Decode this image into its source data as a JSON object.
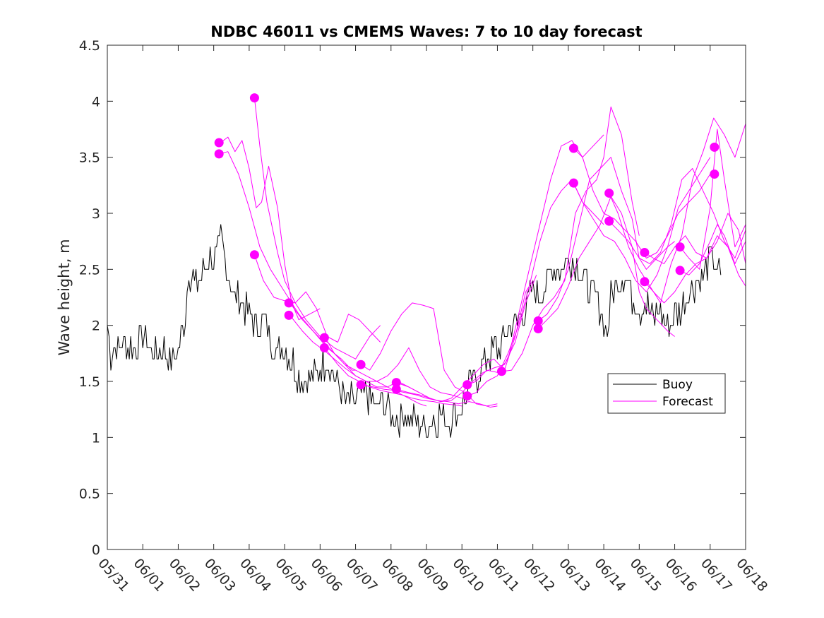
{
  "chart_data": {
    "type": "line",
    "title": "NDBC 46011 vs CMEMS Waves: 7 to 10 day forecast",
    "ylabel": "Wave height, m",
    "xlabel": "",
    "ylim": [
      0,
      4.5
    ],
    "yticks": [
      0,
      0.5,
      1,
      1.5,
      2,
      2.5,
      3,
      3.5,
      4,
      4.5
    ],
    "ytick_labels": [
      "0",
      "0.5",
      "1",
      "1.5",
      "2",
      "2.5",
      "3",
      "3.5",
      "4",
      "4.5"
    ],
    "xlim": [
      "05/31",
      "06/18"
    ],
    "xtick_labels": [
      "05/31",
      "06/01",
      "06/02",
      "06/03",
      "06/04",
      "06/05",
      "06/06",
      "06/07",
      "06/08",
      "06/09",
      "06/10",
      "06/11",
      "06/12",
      "06/13",
      "06/14",
      "06/15",
      "06/16",
      "06/17",
      "06/18"
    ],
    "grid": false,
    "legend": {
      "placement": "right",
      "entries": [
        {
          "label": "Buoy",
          "color": "#000000"
        },
        {
          "label": "Forecast",
          "color": "#ff00ff"
        }
      ]
    },
    "series": [
      {
        "name": "Buoy",
        "color": "#000000",
        "x": [
          0,
          0.1,
          0.3,
          0.5,
          0.7,
          0.9,
          1.0,
          1.2,
          1.4,
          1.6,
          1.8,
          1.9,
          2.0,
          2.2,
          2.3,
          2.5,
          2.7,
          2.9,
          3.0,
          3.2,
          3.4,
          3.6,
          3.8,
          4.0,
          4.2,
          4.4,
          4.6,
          4.8,
          5.0,
          5.2,
          5.4,
          5.6,
          5.8,
          6.0,
          6.2,
          6.4,
          6.6,
          6.8,
          7.0,
          7.2,
          7.4,
          7.6,
          7.8,
          8.0,
          8.2,
          8.4,
          8.6,
          8.8,
          9.0,
          9.2,
          9.4,
          9.6,
          9.8,
          10.0,
          10.2,
          10.4,
          10.6,
          10.8,
          11.0,
          11.2,
          11.4,
          11.6,
          11.8,
          12.0,
          12.2,
          12.4,
          12.6,
          12.8,
          13.0,
          13.2,
          13.4,
          13.6,
          13.8,
          14.0,
          14.1,
          14.2,
          14.4,
          14.6,
          14.8,
          15.0,
          15.2,
          15.4,
          15.6,
          15.8,
          16.0,
          16.2,
          16.4,
          16.6,
          16.8,
          17.0,
          17.1,
          17.2,
          17.3
        ],
        "values": [
          2.05,
          1.75,
          1.8,
          1.85,
          1.8,
          1.85,
          1.95,
          1.8,
          1.75,
          1.8,
          1.7,
          1.75,
          1.75,
          2.1,
          2.5,
          2.35,
          2.45,
          2.65,
          2.55,
          2.75,
          2.45,
          2.25,
          2.2,
          2.1,
          2.0,
          2.05,
          1.9,
          1.75,
          1.8,
          1.7,
          1.55,
          1.5,
          1.55,
          1.6,
          1.7,
          1.55,
          1.4,
          1.3,
          1.35,
          1.4,
          1.35,
          1.25,
          1.3,
          1.2,
          1.15,
          1.2,
          1.15,
          1.1,
          1.1,
          1.15,
          1.2,
          1.15,
          1.2,
          1.25,
          1.45,
          1.55,
          1.65,
          1.75,
          1.8,
          1.9,
          2.0,
          2.05,
          2.15,
          2.3,
          2.25,
          2.4,
          2.55,
          2.5,
          2.6,
          2.55,
          2.45,
          2.3,
          2.25,
          2.05,
          1.9,
          2.3,
          2.4,
          2.5,
          2.25,
          2.15,
          2.2,
          2.05,
          2.15,
          2.0,
          2.1,
          2.15,
          2.3,
          2.4,
          2.45,
          2.6,
          2.55,
          2.5,
          2.45
        ]
      },
      {
        "name": "Forecast",
        "color": "#ff00ff",
        "x": [
          3.15,
          3.4,
          3.6,
          3.8,
          4.0,
          4.2,
          4.35,
          4.55,
          4.8,
          5.0,
          5.2,
          5.4,
          5.7,
          6.0
        ],
        "values": [
          3.62,
          3.68,
          3.55,
          3.65,
          3.4,
          3.05,
          3.1,
          3.42,
          3.05,
          2.55,
          2.2,
          2.05,
          2.1,
          2.15
        ]
      },
      {
        "name": "Forecast",
        "color": "#ff00ff",
        "x": [
          3.15,
          3.4,
          3.7,
          4.0,
          4.3,
          4.6,
          5.0,
          5.4,
          5.8,
          6.2,
          6.6,
          6.9,
          7.0
        ],
        "values": [
          3.53,
          3.55,
          3.35,
          3.05,
          2.7,
          2.5,
          2.3,
          2.1,
          1.95,
          1.8,
          1.7,
          1.6,
          1.6
        ]
      },
      {
        "name": "Forecast",
        "color": "#ff00ff",
        "x": [
          4.15,
          4.3,
          4.5,
          4.8,
          5.0,
          5.3,
          5.6,
          6.0,
          6.4,
          6.7,
          7.0,
          7.4,
          7.7
        ],
        "values": [
          4.03,
          3.6,
          3.1,
          2.65,
          2.4,
          2.2,
          2.05,
          1.9,
          1.8,
          1.75,
          1.7,
          1.9,
          2.0
        ]
      },
      {
        "name": "Forecast",
        "color": "#ff00ff",
        "x": [
          4.15,
          4.4,
          4.7,
          5.0,
          5.3,
          5.6,
          5.9,
          6.2,
          6.5,
          6.8,
          7.1,
          7.4,
          7.7
        ],
        "values": [
          2.63,
          2.4,
          2.25,
          2.22,
          2.2,
          2.3,
          2.15,
          1.9,
          1.85,
          2.1,
          2.05,
          1.95,
          1.85
        ]
      },
      {
        "name": "Forecast",
        "color": "#ff00ff",
        "x": [
          5.15,
          5.5,
          5.8,
          6.1,
          6.4,
          6.7,
          7.0,
          7.3,
          7.6,
          7.9,
          8.2,
          8.5,
          8.8,
          9.0
        ],
        "values": [
          2.2,
          2.05,
          1.95,
          1.85,
          1.75,
          1.65,
          1.6,
          1.55,
          1.5,
          1.45,
          1.4,
          1.35,
          1.3,
          1.28
        ]
      },
      {
        "name": "Forecast",
        "color": "#ff00ff",
        "x": [
          5.15,
          5.5,
          5.8,
          6.1,
          6.4,
          6.7,
          7.0,
          7.3,
          7.6,
          7.9,
          8.2,
          8.5,
          8.8
        ],
        "values": [
          2.09,
          1.95,
          1.85,
          1.78,
          1.7,
          1.62,
          1.55,
          1.5,
          1.45,
          1.45,
          1.5,
          1.45,
          1.4
        ]
      },
      {
        "name": "Forecast",
        "color": "#ff00ff",
        "x": [
          6.15,
          6.4,
          6.7,
          7.0,
          7.3,
          7.6,
          7.9,
          8.2,
          8.5,
          8.8,
          9.1,
          9.4,
          9.7,
          10.0
        ],
        "values": [
          1.89,
          1.75,
          1.65,
          1.55,
          1.5,
          1.5,
          1.55,
          1.65,
          1.8,
          1.6,
          1.45,
          1.4,
          1.38,
          1.35
        ]
      },
      {
        "name": "Forecast",
        "color": "#ff00ff",
        "x": [
          6.15,
          6.5,
          6.8,
          7.1,
          7.4,
          7.7,
          8.0,
          8.3,
          8.6,
          8.9,
          9.2,
          9.5,
          9.8,
          10.0
        ],
        "values": [
          1.79,
          1.65,
          1.55,
          1.5,
          1.45,
          1.42,
          1.4,
          1.38,
          1.35,
          1.33,
          1.32,
          1.3,
          1.29,
          1.28
        ]
      },
      {
        "name": "Forecast",
        "color": "#ff00ff",
        "x": [
          7.15,
          7.4,
          7.7,
          8.0,
          8.3,
          8.6,
          8.9,
          9.2,
          9.5,
          9.8,
          10.1,
          10.4,
          10.7,
          11.0
        ],
        "values": [
          1.65,
          1.6,
          1.75,
          1.95,
          2.1,
          2.2,
          2.18,
          2.15,
          1.6,
          1.45,
          1.4,
          1.3,
          1.28,
          1.3
        ]
      },
      {
        "name": "Forecast",
        "color": "#ff00ff",
        "x": [
          7.15,
          7.5,
          7.8,
          8.1,
          8.4,
          8.7,
          9.0,
          9.3,
          9.6,
          9.9,
          10.2,
          10.5,
          10.8,
          11.0
        ],
        "values": [
          1.47,
          1.45,
          1.43,
          1.42,
          1.4,
          1.38,
          1.35,
          1.33,
          1.32,
          1.3,
          1.32,
          1.3,
          1.27,
          1.28
        ]
      },
      {
        "name": "Forecast",
        "color": "#ff00ff",
        "x": [
          8.15,
          8.5,
          8.8,
          9.1,
          9.4,
          9.7,
          10.0,
          10.3,
          10.6,
          10.9,
          11.2,
          11.5,
          11.8,
          12.0
        ],
        "values": [
          1.49,
          1.45,
          1.4,
          1.35,
          1.32,
          1.35,
          1.45,
          1.55,
          1.65,
          1.7,
          1.6,
          1.9,
          2.3,
          2.4
        ]
      },
      {
        "name": "Forecast",
        "color": "#ff00ff",
        "x": [
          8.15,
          8.5,
          8.8,
          9.1,
          9.4,
          9.7,
          10.0,
          10.3,
          10.6,
          10.9,
          11.2,
          11.5,
          11.8,
          12.1
        ],
        "values": [
          1.43,
          1.4,
          1.38,
          1.35,
          1.32,
          1.33,
          1.4,
          1.5,
          1.58,
          1.62,
          1.65,
          1.85,
          2.2,
          2.45
        ]
      },
      {
        "name": "Forecast",
        "color": "#ff00ff",
        "x": [
          10.15,
          10.4,
          10.7,
          11.0,
          11.3,
          11.6,
          11.9,
          12.2,
          12.5,
          12.8,
          13.1,
          13.4,
          13.7,
          14.0
        ],
        "values": [
          1.47,
          1.5,
          1.6,
          1.58,
          1.7,
          2.1,
          2.5,
          2.9,
          3.3,
          3.6,
          3.65,
          3.5,
          3.6,
          3.7
        ]
      },
      {
        "name": "Forecast",
        "color": "#ff00ff",
        "x": [
          10.15,
          10.4,
          10.7,
          11.0,
          11.3,
          11.6,
          11.9,
          12.2,
          12.5,
          12.8,
          13.1,
          13.4,
          13.7,
          14.0
        ],
        "values": [
          1.37,
          1.4,
          1.5,
          1.55,
          1.75,
          2.0,
          2.35,
          2.75,
          3.05,
          3.2,
          3.3,
          3.1,
          3.0,
          2.9
        ]
      },
      {
        "name": "Forecast",
        "color": "#ff00ff",
        "x": [
          11.15,
          11.4,
          11.7,
          12.0,
          12.3,
          12.6,
          12.9,
          13.2,
          13.5,
          13.8,
          14.0,
          14.2,
          14.5,
          14.8,
          15.0
        ],
        "values": [
          1.59,
          1.6,
          1.75,
          2.0,
          2.15,
          2.25,
          2.4,
          3.0,
          3.2,
          3.3,
          3.5,
          3.95,
          3.7,
          3.1,
          2.8
        ]
      },
      {
        "name": "Forecast",
        "color": "#ff00ff",
        "x": [
          12.15,
          12.4,
          12.7,
          13.0,
          13.3,
          13.6,
          13.9,
          14.2,
          14.5,
          14.8,
          15.0,
          15.2,
          15.5,
          15.8,
          16.0
        ],
        "values": [
          2.04,
          2.1,
          2.25,
          2.5,
          2.9,
          3.3,
          3.4,
          3.5,
          3.2,
          2.95,
          2.6,
          2.5,
          2.6,
          2.7,
          2.75
        ]
      },
      {
        "name": "Forecast",
        "color": "#ff00ff",
        "x": [
          12.15,
          12.4,
          12.7,
          13.0,
          13.3,
          13.6,
          13.9,
          14.2,
          14.5,
          14.8,
          15.0,
          15.2,
          15.5,
          15.8,
          16.0
        ],
        "values": [
          1.97,
          2.05,
          2.15,
          2.35,
          2.6,
          2.75,
          2.9,
          3.15,
          3.0,
          2.7,
          2.3,
          2.15,
          2.05,
          1.95,
          1.9
        ]
      },
      {
        "name": "Forecast",
        "color": "#ff00ff",
        "x": [
          13.15,
          13.4,
          13.7,
          14.0,
          14.3,
          14.6,
          14.9,
          15.2,
          15.5,
          15.8,
          16.1,
          16.4,
          16.7,
          17.0
        ],
        "values": [
          3.58,
          3.5,
          3.2,
          3.0,
          2.95,
          2.85,
          2.75,
          2.6,
          2.65,
          2.8,
          3.0,
          3.1,
          3.2,
          3.35
        ]
      },
      {
        "name": "Forecast",
        "color": "#ff00ff",
        "x": [
          13.15,
          13.4,
          13.7,
          14.0,
          14.3,
          14.6,
          14.9,
          15.2,
          15.5,
          15.8,
          16.1,
          16.4,
          16.7,
          17.0
        ],
        "values": [
          3.27,
          3.1,
          2.95,
          2.8,
          2.75,
          2.6,
          2.4,
          2.3,
          2.45,
          2.7,
          3.05,
          3.2,
          3.35,
          3.5
        ]
      },
      {
        "name": "Forecast",
        "color": "#ff00ff",
        "x": [
          14.15,
          14.4,
          14.7,
          15.0,
          15.3,
          15.6,
          15.9,
          16.2,
          16.5,
          16.8,
          17.1,
          17.4,
          17.7,
          18.0
        ],
        "values": [
          3.18,
          3.0,
          2.7,
          2.5,
          2.35,
          2.2,
          2.55,
          2.8,
          3.3,
          3.55,
          3.85,
          3.7,
          3.5,
          3.8
        ]
      },
      {
        "name": "Forecast",
        "color": "#ff00ff",
        "x": [
          14.15,
          14.4,
          14.7,
          15.0,
          15.3,
          15.6,
          15.9,
          16.2,
          16.5,
          16.8,
          17.1,
          17.4,
          17.7,
          18.0
        ],
        "values": [
          2.93,
          2.85,
          2.75,
          2.6,
          2.55,
          2.65,
          2.9,
          3.3,
          3.4,
          3.2,
          3.0,
          2.75,
          2.6,
          2.85
        ]
      },
      {
        "name": "Forecast",
        "color": "#ff00ff",
        "x": [
          15.15,
          15.4,
          15.7,
          16.0,
          16.3,
          16.6,
          16.9,
          17.2,
          17.5,
          17.8,
          18.0
        ],
        "values": [
          2.65,
          2.6,
          2.55,
          2.7,
          2.8,
          2.65,
          2.6,
          2.75,
          3.0,
          2.85,
          2.55
        ]
      },
      {
        "name": "Forecast",
        "color": "#ff00ff",
        "x": [
          15.15,
          15.4,
          15.7,
          16.0,
          16.3,
          16.6,
          16.9,
          17.2,
          17.5,
          17.8,
          18.0
        ],
        "values": [
          2.39,
          2.3,
          2.2,
          2.3,
          2.45,
          2.55,
          2.6,
          2.8,
          2.7,
          2.45,
          2.35
        ]
      },
      {
        "name": "Forecast",
        "color": "#ff00ff",
        "x": [
          16.15,
          16.4,
          16.7,
          17.0,
          17.2,
          17.4,
          17.7,
          18.0
        ],
        "values": [
          2.7,
          2.6,
          2.5,
          3.05,
          3.75,
          3.3,
          2.7,
          2.9
        ]
      },
      {
        "name": "Forecast",
        "color": "#ff00ff",
        "x": [
          16.15,
          16.4,
          16.7,
          17.0,
          17.2,
          17.4,
          17.7,
          18.0
        ],
        "values": [
          2.49,
          2.45,
          2.55,
          2.75,
          2.9,
          2.8,
          2.55,
          2.75
        ]
      }
    ],
    "markers": {
      "color": "#ff00ff",
      "points": [
        {
          "x": 3.15,
          "y": 3.63
        },
        {
          "x": 3.15,
          "y": 3.53
        },
        {
          "x": 4.15,
          "y": 4.03
        },
        {
          "x": 4.15,
          "y": 2.63
        },
        {
          "x": 5.12,
          "y": 2.2
        },
        {
          "x": 5.12,
          "y": 2.09
        },
        {
          "x": 6.12,
          "y": 1.89
        },
        {
          "x": 6.12,
          "y": 1.8
        },
        {
          "x": 7.15,
          "y": 1.65
        },
        {
          "x": 7.15,
          "y": 1.47
        },
        {
          "x": 8.15,
          "y": 1.49
        },
        {
          "x": 8.15,
          "y": 1.43
        },
        {
          "x": 10.15,
          "y": 1.47
        },
        {
          "x": 10.15,
          "y": 1.37
        },
        {
          "x": 11.12,
          "y": 1.59
        },
        {
          "x": 12.15,
          "y": 2.04
        },
        {
          "x": 12.15,
          "y": 1.97
        },
        {
          "x": 13.15,
          "y": 3.58
        },
        {
          "x": 13.15,
          "y": 3.27
        },
        {
          "x": 14.15,
          "y": 3.18
        },
        {
          "x": 14.15,
          "y": 2.93
        },
        {
          "x": 15.15,
          "y": 2.65
        },
        {
          "x": 15.15,
          "y": 2.39
        },
        {
          "x": 16.15,
          "y": 2.7
        },
        {
          "x": 16.15,
          "y": 2.49
        },
        {
          "x": 17.12,
          "y": 3.59
        },
        {
          "x": 17.12,
          "y": 3.35
        }
      ]
    }
  }
}
